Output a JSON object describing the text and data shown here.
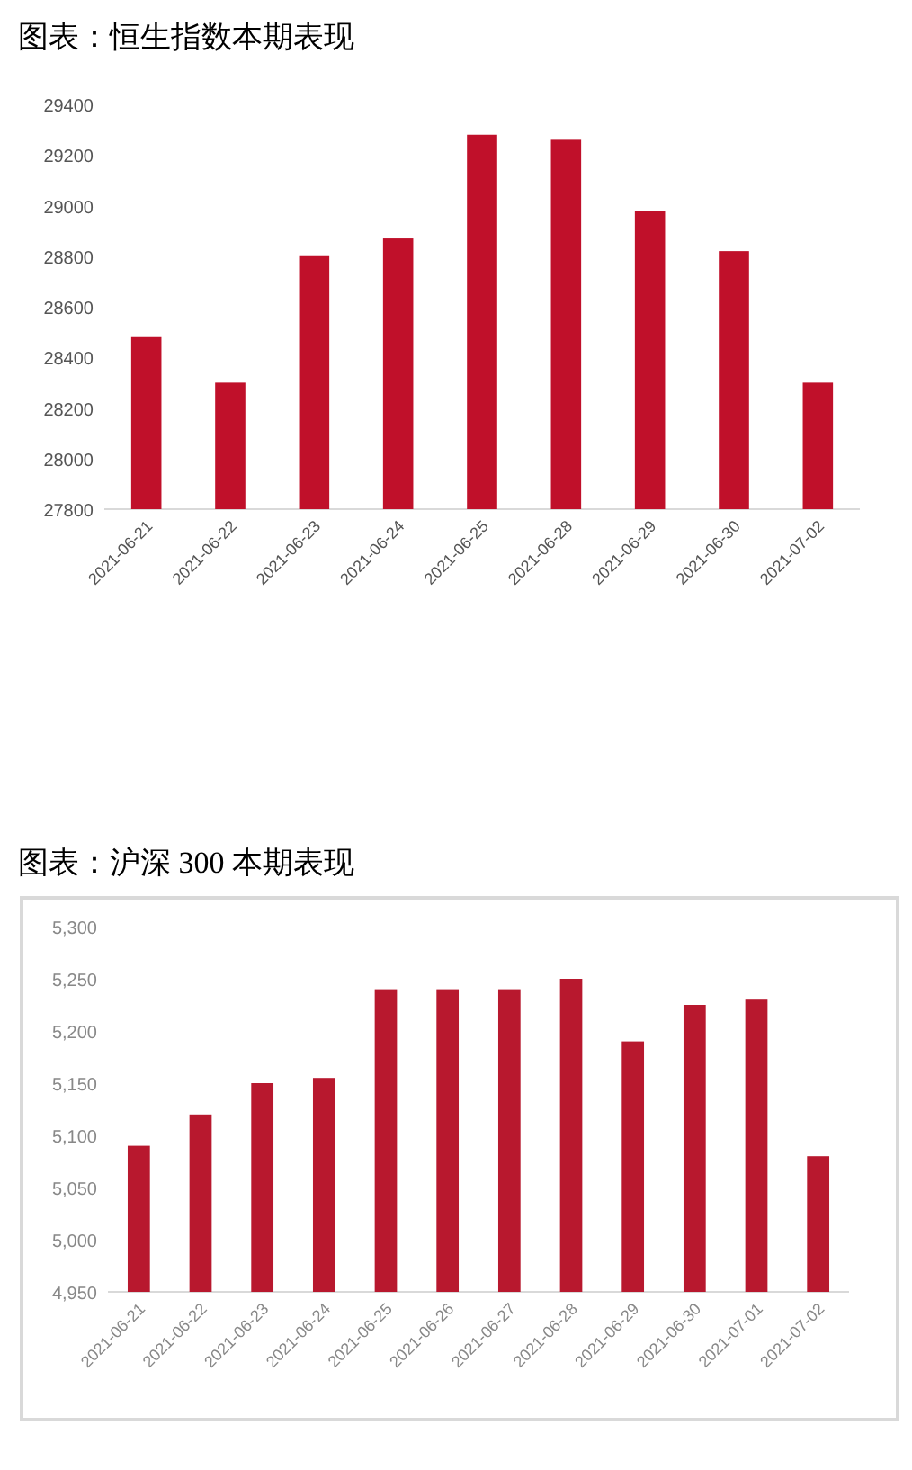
{
  "chart_data": [
    {
      "type": "bar",
      "title": "图表：恒生指数本期表现",
      "categories": [
        "2021-06-21",
        "2021-06-22",
        "2021-06-23",
        "2021-06-24",
        "2021-06-25",
        "2021-06-28",
        "2021-06-29",
        "2021-06-30",
        "2021-07-02"
      ],
      "values": [
        28480,
        28300,
        28800,
        28870,
        29280,
        29260,
        28980,
        28820,
        28300
      ],
      "color": "#c0102a",
      "ylim": [
        27800,
        29400
      ],
      "yticks": [
        27800,
        28000,
        28200,
        28400,
        28600,
        28800,
        29000,
        29200,
        29400
      ],
      "grid": false
    },
    {
      "type": "bar",
      "title": "图表：沪深 300 本期表现",
      "categories": [
        "2021-06-21",
        "2021-06-22",
        "2021-06-23",
        "2021-06-24",
        "2021-06-25",
        "2021-06-26",
        "2021-06-27",
        "2021-06-28",
        "2021-06-29",
        "2021-06-30",
        "2021-07-01",
        "2021-07-02"
      ],
      "values": [
        5090,
        5120,
        5150,
        5155,
        5240,
        5240,
        5240,
        5250,
        5190,
        5225,
        5230,
        5080
      ],
      "color": "#b8182e",
      "ylim": [
        4950,
        5300
      ],
      "yticks": [
        {
          "value": 4950,
          "label": "4,950"
        },
        {
          "value": 5000,
          "label": "5,000"
        },
        {
          "value": 5050,
          "label": "5,050"
        },
        {
          "value": 5100,
          "label": "5,100"
        },
        {
          "value": 5150,
          "label": "5,150"
        },
        {
          "value": 5200,
          "label": "5,200"
        },
        {
          "value": 5250,
          "label": "5,250"
        },
        {
          "value": 5300,
          "label": "5,300"
        }
      ],
      "grid": false
    }
  ]
}
